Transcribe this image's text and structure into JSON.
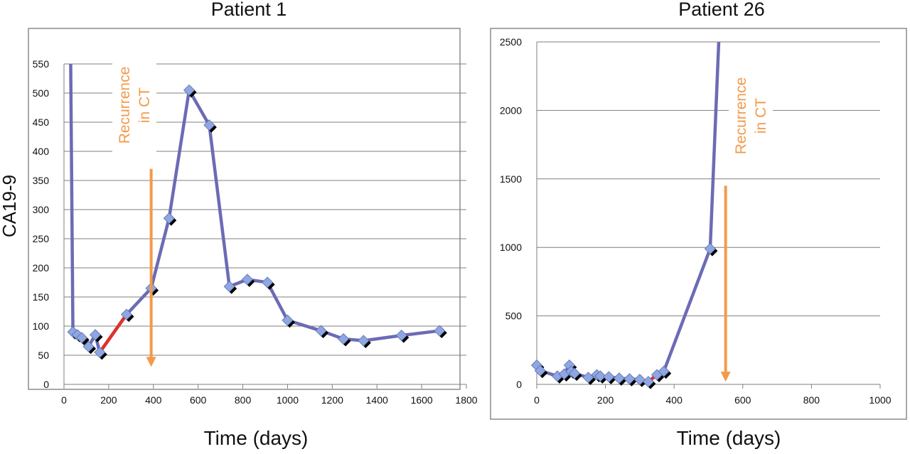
{
  "figure": {
    "ylabel": "CA19-9",
    "colors": {
      "line": "#6b6bb5",
      "marker": "#8fa6e0",
      "marker_shadow": "#000000",
      "highlight": "#e0302a",
      "annotation": "#f39a4a",
      "grid": "#7f7f7f",
      "frame": "#8c8c8c"
    }
  },
  "chart_data": [
    {
      "type": "line",
      "title": "Patient 1",
      "xlabel": "Time (days)",
      "ylabel": "CA19-9",
      "xlim": [
        0,
        1800
      ],
      "ylim": [
        0,
        550
      ],
      "xticks": [
        0,
        200,
        400,
        600,
        800,
        1000,
        1200,
        1400,
        1600,
        1800
      ],
      "yticks": [
        0,
        50,
        100,
        150,
        200,
        250,
        300,
        350,
        400,
        450,
        500,
        550
      ],
      "grid": "horizontal",
      "series": [
        {
          "x": [
            30,
            40,
            60,
            80,
            110,
            140,
            160,
            280,
            390,
            470,
            560,
            650,
            740,
            820,
            910,
            1000,
            1150,
            1250,
            1340,
            1510,
            1680
          ],
          "y": [
            550,
            90,
            85,
            80,
            65,
            85,
            55,
            120,
            165,
            285,
            505,
            445,
            168,
            180,
            175,
            110,
            92,
            78,
            75,
            84,
            92
          ],
          "markers": [
            false,
            true,
            true,
            true,
            true,
            true,
            true,
            true,
            true,
            true,
            true,
            true,
            true,
            true,
            true,
            true,
            true,
            true,
            true,
            true,
            true
          ]
        }
      ],
      "highlight_segment": {
        "from_index": 6,
        "to_index": 7
      },
      "annotation": {
        "text_lines": [
          "Recurrence",
          "in CT"
        ],
        "arrow_x": 390,
        "arrow_y_top": 370,
        "arrow_y_bottom": 30
      }
    },
    {
      "type": "line",
      "title": "Patient 26",
      "xlabel": "Time (days)",
      "ylabel": "",
      "xlim": [
        0,
        1000
      ],
      "ylim": [
        0,
        2500
      ],
      "xticks": [
        0,
        200,
        400,
        600,
        800,
        1000
      ],
      "yticks": [
        0,
        500,
        1000,
        1500,
        2000,
        2500
      ],
      "grid": "horizontal",
      "series": [
        {
          "x": [
            0,
            10,
            60,
            80,
            95,
            100,
            110,
            150,
            175,
            185,
            210,
            240,
            270,
            300,
            325,
            350,
            370,
            505,
            530
          ],
          "y": [
            140,
            100,
            60,
            75,
            140,
            95,
            80,
            50,
            70,
            60,
            55,
            45,
            40,
            35,
            20,
            70,
            95,
            990,
            2500
          ],
          "markers": [
            true,
            true,
            true,
            true,
            true,
            true,
            true,
            true,
            true,
            true,
            true,
            true,
            true,
            true,
            true,
            true,
            true,
            true,
            false
          ]
        }
      ],
      "highlight_segment": {
        "from_index": 14,
        "to_index": 16
      },
      "annotation": {
        "text_lines": [
          "Recurrence",
          "in CT"
        ],
        "arrow_x": 550,
        "arrow_y_top": 1450,
        "arrow_y_bottom": 20
      }
    }
  ]
}
